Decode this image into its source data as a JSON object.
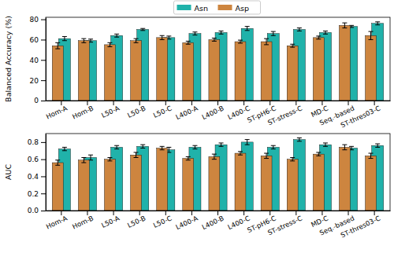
{
  "chart_data": [
    {
      "type": "bar",
      "ylabel": "Balanced Accuracy (%)",
      "categories": [
        "Hom-A",
        "Hom-B",
        "L50-A",
        "L50-B",
        "L50-C",
        "L400-A",
        "L400-B",
        "L400-C",
        "ST-pH6-C",
        "ST-stress-C",
        "MD-C",
        "Seq.-based",
        "ST-thres03-C"
      ],
      "series": [
        {
          "name": "Asn",
          "color": "#20b2aa",
          "values": [
            61,
            59,
            64,
            70,
            62,
            66,
            67,
            71,
            66,
            70,
            67,
            73,
            76
          ],
          "errors": [
            2,
            1.5,
            1.5,
            1,
            1.5,
            1.5,
            1.5,
            2,
            2,
            1.5,
            1.5,
            1,
            1.5
          ]
        },
        {
          "name": "Asp",
          "color": "#cd853f",
          "values": [
            54,
            59,
            55,
            59,
            62,
            57,
            60,
            58,
            58,
            54,
            62,
            74,
            64
          ],
          "errors": [
            3,
            2,
            2,
            2,
            2,
            1.5,
            1.5,
            1.5,
            3,
            1.5,
            1.5,
            2.5,
            4
          ]
        }
      ],
      "ylim": [
        0,
        82
      ],
      "yticks": [
        0,
        20,
        40,
        60,
        80
      ],
      "legend": "upper center"
    },
    {
      "type": "bar",
      "ylabel": "AUC",
      "categories": [
        "Hom-A",
        "Hom-B",
        "L50-A",
        "L50-B",
        "L50-C",
        "L400-A",
        "L400-B",
        "L400-C",
        "ST-pH6-C",
        "ST-stress-C",
        "MD-C",
        "Seq.-based",
        "ST-thres03-C"
      ],
      "series": [
        {
          "name": "Asn",
          "color": "#20b2aa",
          "values": [
            0.72,
            0.62,
            0.74,
            0.75,
            0.71,
            0.74,
            0.77,
            0.8,
            0.74,
            0.83,
            0.77,
            0.73,
            0.76
          ],
          "errors": [
            0.02,
            0.03,
            0.02,
            0.02,
            0.03,
            0.02,
            0.02,
            0.03,
            0.02,
            0.02,
            0.02,
            0.02,
            0.02
          ]
        },
        {
          "name": "Asp",
          "color": "#cd853f",
          "values": [
            0.56,
            0.59,
            0.6,
            0.65,
            0.73,
            0.61,
            0.63,
            0.67,
            0.64,
            0.6,
            0.66,
            0.74,
            0.64
          ],
          "errors": [
            0.03,
            0.03,
            0.02,
            0.03,
            0.02,
            0.02,
            0.03,
            0.02,
            0.03,
            0.02,
            0.02,
            0.03,
            0.03
          ]
        }
      ],
      "ylim": [
        0,
        0.9
      ],
      "yticks": [
        {
          "value": 0,
          "label": "0.0"
        },
        {
          "value": 0.2,
          "label": "0.2"
        },
        {
          "value": 0.4,
          "label": "0.4"
        },
        {
          "value": 0.6,
          "label": "0.6"
        },
        {
          "value": 0.8,
          "label": "0.8"
        }
      ]
    }
  ]
}
